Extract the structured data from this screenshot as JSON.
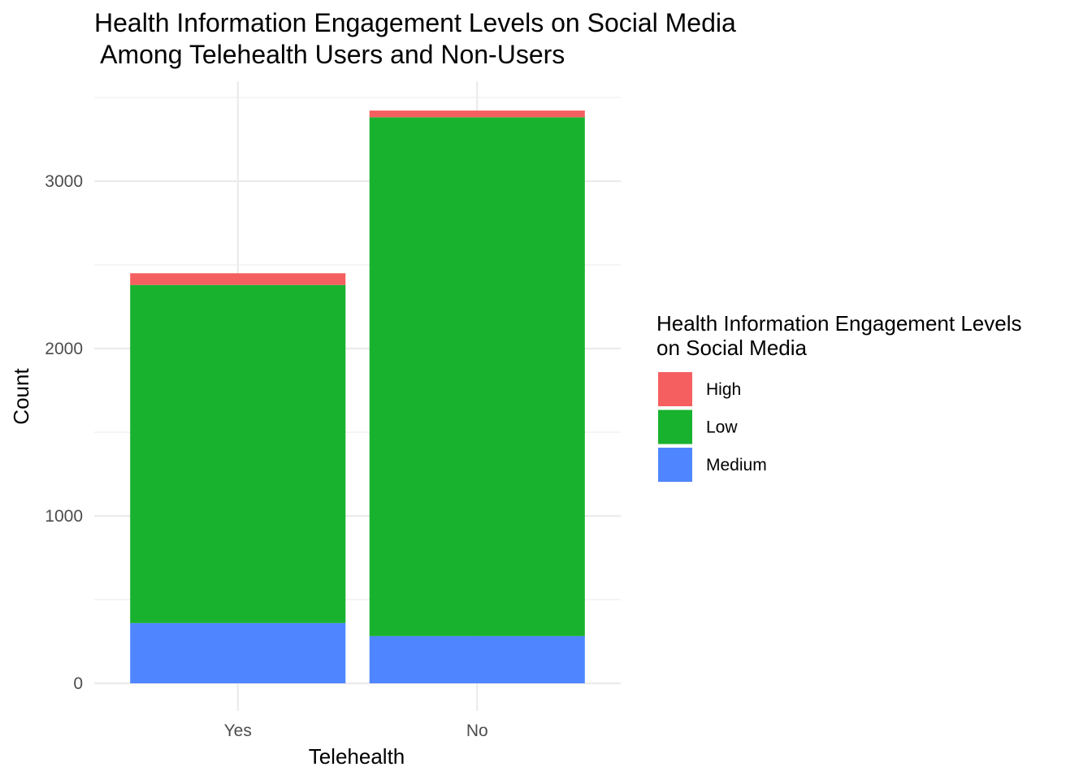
{
  "chart_data": {
    "type": "bar",
    "stacked": true,
    "title_lines": [
      "Health Information Engagement Levels on Social Media",
      " Among Telehealth Users and Non-Users"
    ],
    "xlabel": "Telehealth",
    "ylabel": "Count",
    "categories": [
      "Yes",
      "No"
    ],
    "ylim": [
      0,
      3500
    ],
    "yticks": [
      0,
      1000,
      2000,
      3000
    ],
    "ytick_labels": [
      "0",
      "1000",
      "2000",
      "3000"
    ],
    "grid": true,
    "legend": {
      "title_lines": [
        "Health Information Engagement Levels",
        "on Social Media"
      ],
      "position": "right"
    },
    "series": [
      {
        "name": "Medium",
        "color": "#4f86ff",
        "values": [
          360,
          282
        ]
      },
      {
        "name": "Low",
        "color": "#19b22f",
        "values": [
          2020,
          3100
        ]
      },
      {
        "name": "High",
        "color": "#f55f5f",
        "values": [
          70,
          40
        ]
      }
    ]
  }
}
